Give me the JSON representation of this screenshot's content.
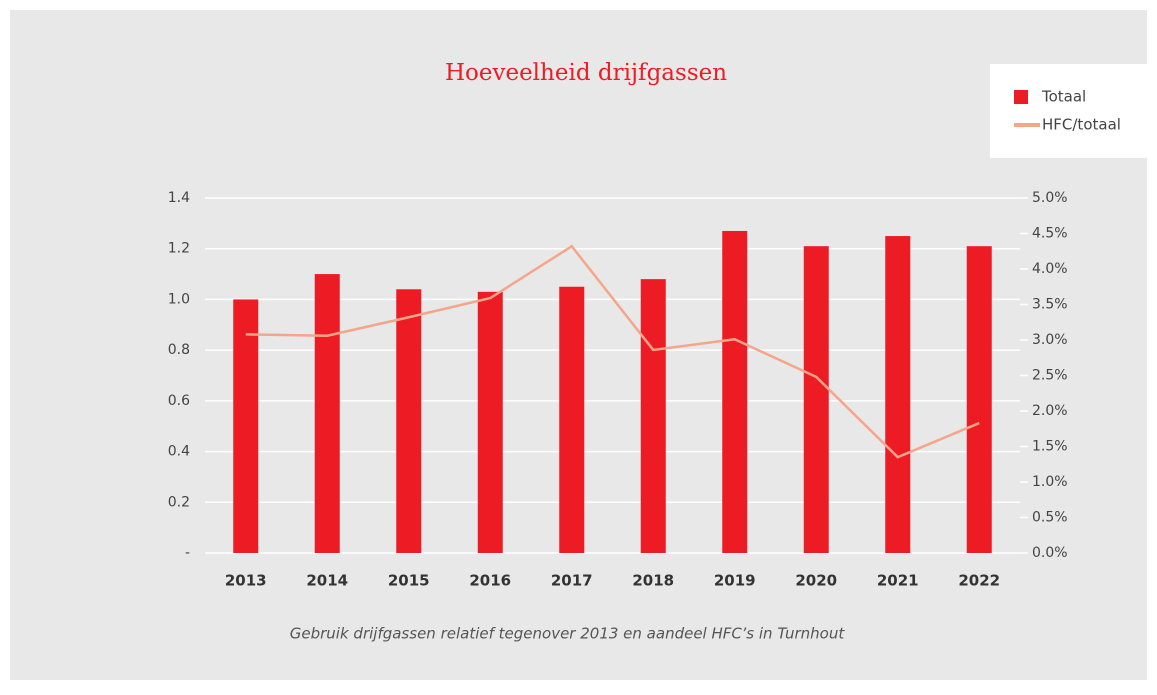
{
  "chart_data": {
    "type": "bar_line",
    "title": "Hoeveelheid drijfgassen",
    "caption": "Gebruik drijfgassen relatief tegenover 2013 en aandeel HFC’s in Turnhout",
    "categories": [
      "2013",
      "2014",
      "2015",
      "2016",
      "2017",
      "2018",
      "2019",
      "2020",
      "2021",
      "2022"
    ],
    "series": [
      {
        "name": "Totaal",
        "type": "bar",
        "color": "#ed1c24",
        "values": [
          1.0,
          1.1,
          1.04,
          1.03,
          1.05,
          1.08,
          1.27,
          1.21,
          1.25,
          1.21
        ]
      },
      {
        "name": "HFC/totaal",
        "type": "line",
        "axis": "y2",
        "color": "#f4a58a",
        "values": [
          3.08,
          3.06,
          3.32,
          3.59,
          4.32,
          2.86,
          3.01,
          2.48,
          1.35,
          1.83
        ]
      }
    ],
    "ylim": [
      0,
      1.4
    ],
    "yticks": [
      {
        "value": 0,
        "label": "-"
      },
      0.2,
      0.4,
      0.6,
      0.8,
      {
        "value": 1,
        "label": "1.0"
      },
      1.2,
      1.4
    ],
    "y2lim": [
      0,
      5
    ],
    "y2ticks": [
      {
        "value": 0,
        "label": "0.0%"
      },
      {
        "value": 0.5,
        "label": "0.5%"
      },
      {
        "value": 1,
        "label": "1.0%"
      },
      {
        "value": 1.5,
        "label": "1.5%"
      },
      {
        "value": 2,
        "label": "2.0%"
      },
      {
        "value": 2.5,
        "label": "2.5%"
      },
      {
        "value": 3,
        "label": "3.0%"
      },
      {
        "value": 3.5,
        "label": "3.5%"
      },
      {
        "value": 4,
        "label": "4.0%"
      },
      {
        "value": 4.5,
        "label": "4.5%"
      },
      {
        "value": 5,
        "label": "5.0%"
      }
    ],
    "grid": true,
    "legend": "top-right"
  }
}
